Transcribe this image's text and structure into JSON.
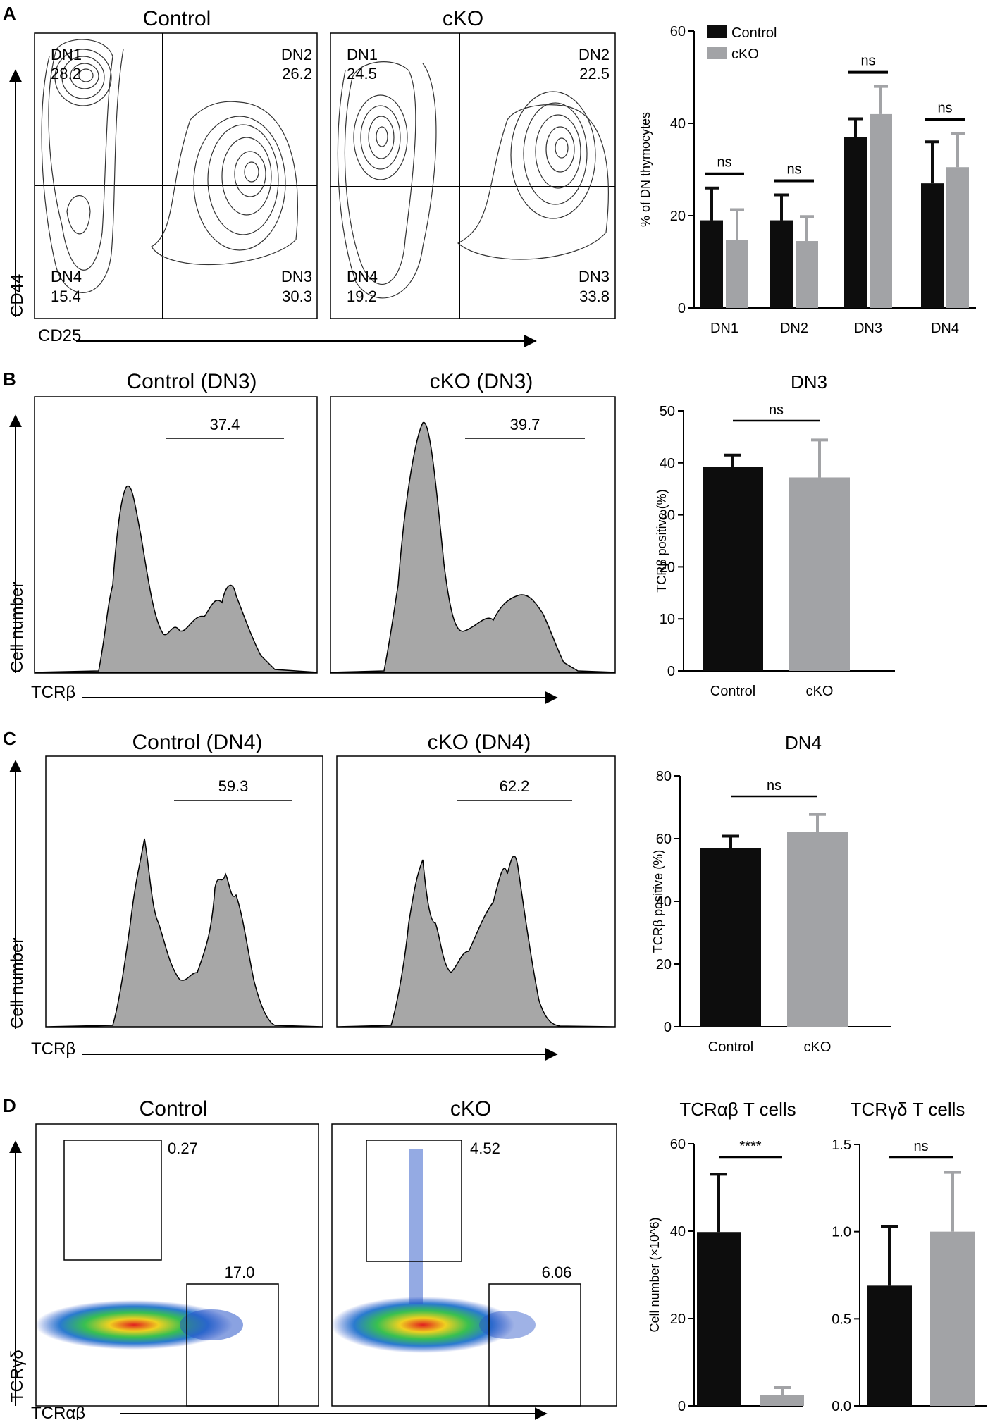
{
  "colors": {
    "control": "#0d0d0d",
    "cko": "#a2a3a6",
    "hist_fill": "#a7a7a7",
    "axis": "#000000"
  },
  "panel_letters": [
    "A",
    "B",
    "C",
    "D"
  ],
  "panelA": {
    "flow_titles": [
      "Control",
      "cKO"
    ],
    "y_axis_label": "CD44",
    "x_axis_label": "CD25",
    "quadrants": [
      {
        "dn1": "DN1",
        "dn1_val": "28.2",
        "dn2": "DN2",
        "dn2_val": "26.2",
        "dn3": "DN3",
        "dn3_val": "30.3",
        "dn4": "DN4",
        "dn4_val": "15.4"
      },
      {
        "dn1": "DN1",
        "dn1_val": "24.5",
        "dn2": "DN2",
        "dn2_val": "22.5",
        "dn3": "DN3",
        "dn3_val": "33.8",
        "dn4": "DN4",
        "dn4_val": "19.2"
      }
    ]
  },
  "panelB": {
    "hist_titles": [
      "Control (DN3)",
      "cKO (DN3)"
    ],
    "gate_values": [
      "37.4",
      "39.7"
    ],
    "y_axis_label": "Cell number",
    "x_axis_label": "TCRβ"
  },
  "panelC": {
    "hist_titles": [
      "Control (DN4)",
      "cKO (DN4)"
    ],
    "gate_values": [
      "59.3",
      "62.2"
    ],
    "y_axis_label": "Cell number",
    "x_axis_label": "TCRβ"
  },
  "panelD": {
    "flow_titles": [
      "Control",
      "cKO"
    ],
    "gate_values": [
      {
        "gd": "0.27",
        "ab": "17.0"
      },
      {
        "gd": "4.52",
        "ab": "6.06"
      }
    ],
    "y_axis_label": "TCRγδ",
    "x_axis_label": "TCRαβ"
  },
  "chart_data": [
    {
      "type": "bar",
      "id": "A-bars",
      "title": "",
      "categories": [
        "DN1",
        "DN2",
        "DN3",
        "DN4"
      ],
      "series": [
        {
          "name": "Control",
          "values": [
            19,
            19,
            37,
            27
          ],
          "errors": [
            7,
            5.5,
            4,
            9
          ]
        },
        {
          "name": "cKO",
          "values": [
            14.8,
            14.5,
            42,
            30.5
          ],
          "errors": [
            6.5,
            5.3,
            6,
            7.3
          ]
        }
      ],
      "significance": [
        "ns",
        "ns",
        "ns",
        "ns"
      ],
      "ylabel": "% of DN thymocytes",
      "ylim": [
        0,
        60
      ],
      "yticks": [
        "0",
        "20",
        "40",
        "60"
      ],
      "legend": "top-left"
    },
    {
      "type": "bar",
      "id": "B-bars",
      "title": "DN3",
      "categories": [
        "Control",
        "cKO"
      ],
      "values": [
        39.2,
        37.2
      ],
      "errors": [
        2.3,
        7.2
      ],
      "significance": "ns",
      "ylabel": "TCRβ positive (%)",
      "ylim": [
        0,
        50
      ],
      "yticks": [
        "0",
        "10",
        "20",
        "30",
        "40",
        "50"
      ]
    },
    {
      "type": "bar",
      "id": "C-bars",
      "title": "DN4",
      "categories": [
        "Control",
        "cKO"
      ],
      "values": [
        57,
        62.2
      ],
      "errors": [
        3.8,
        5.5
      ],
      "significance": "ns",
      "ylabel": "TCRβ positive (%)",
      "ylim": [
        0,
        80
      ],
      "yticks": [
        "0",
        "20",
        "40",
        "60",
        "80"
      ]
    },
    {
      "type": "bar",
      "id": "D1-bars",
      "title": "TCRαβ T cells",
      "categories": [
        "Control",
        "cKO"
      ],
      "values": [
        39.8,
        2.5
      ],
      "errors": [
        13.2,
        1.7
      ],
      "significance": "****",
      "ylabel": "Cell number (×10^6)",
      "ylim": [
        0,
        60
      ],
      "yticks": [
        "0",
        "20",
        "40",
        "60"
      ]
    },
    {
      "type": "bar",
      "id": "D2-bars",
      "title": "TCRγδ T cells",
      "categories": [
        "Control",
        "cKO"
      ],
      "values": [
        0.69,
        1.0
      ],
      "errors": [
        0.34,
        0.34
      ],
      "significance": "ns",
      "ylabel": "",
      "ylim": [
        0,
        1.5
      ],
      "yticks": [
        "0.0",
        "0.5",
        "1.0",
        "1.5"
      ]
    }
  ]
}
